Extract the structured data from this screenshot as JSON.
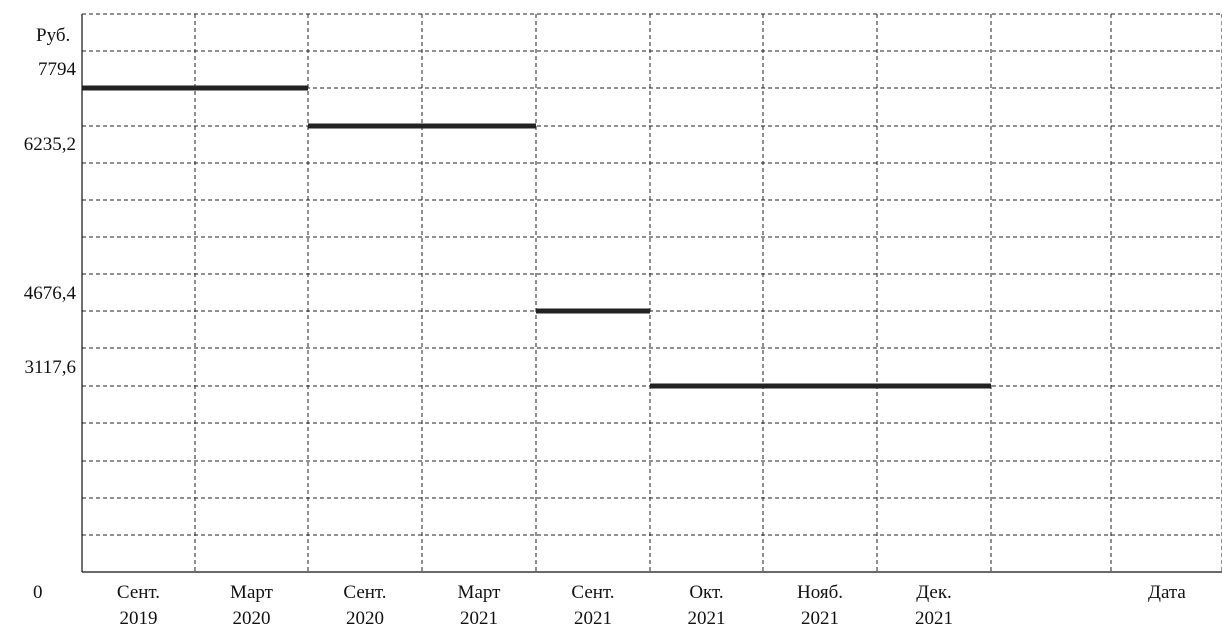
{
  "chart_data": {
    "type": "line",
    "style": "step-segments",
    "y_unit_label": "Руб.",
    "x_unit_label": "Дата",
    "origin_label": "0",
    "y_ticks": [
      {
        "value": 7794,
        "label": "7794"
      },
      {
        "value": 6235.2,
        "label": "6235,2"
      },
      {
        "value": 4676.4,
        "label": "4676,4"
      },
      {
        "value": 3117.6,
        "label": "3117,6"
      }
    ],
    "ylim": [
      0,
      8800
    ],
    "categories": [
      [
        "Сент.",
        "2019"
      ],
      [
        "Март",
        "2020"
      ],
      [
        "Сент.",
        "2020"
      ],
      [
        "Март",
        "2021"
      ],
      [
        "Сент.",
        "2021"
      ],
      [
        "Окт.",
        "2021"
      ],
      [
        "Нояб.",
        "2021"
      ],
      [
        "Дек.",
        "2021"
      ]
    ],
    "segments": [
      {
        "from": "Сент. 2019",
        "to": "Март 2020",
        "value": 7400
      },
      {
        "from": "Сент. 2020",
        "to": "Март 2021",
        "value": 6500
      },
      {
        "from": "Сент. 2021",
        "to": "Сент. 2021",
        "value": 4150
      },
      {
        "from": "Окт. 2021",
        "to": "Дек. 2021",
        "value": 2880
      }
    ],
    "grid": true
  }
}
